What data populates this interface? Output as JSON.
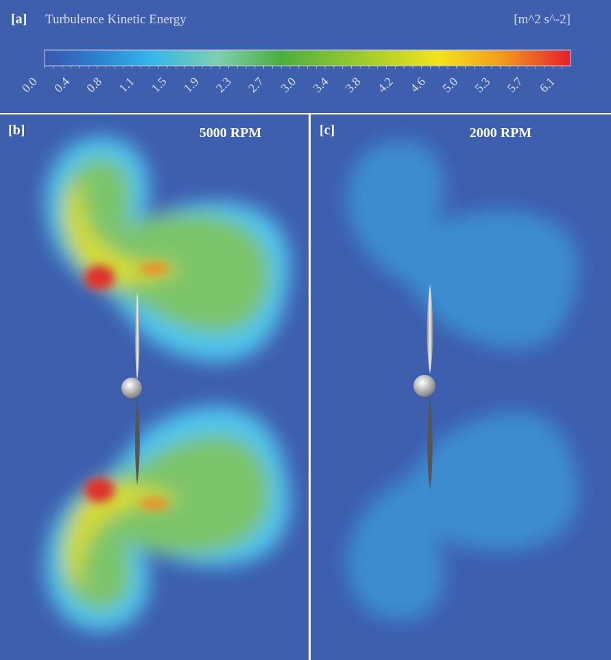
{
  "colorbar": {
    "label": "[a]",
    "title": "Turbulence Kinetic Energy",
    "unit": "[m^2 s^-2]",
    "ticks": [
      "0.0",
      "0.4",
      "0.8",
      "1.1",
      "1.5",
      "1.9",
      "2.3",
      "2.7",
      "3.0",
      "3.4",
      "3.8",
      "4.2",
      "4.6",
      "5.0",
      "5.3",
      "5.7",
      "6.1"
    ]
  },
  "panels": [
    {
      "label": "[b]",
      "title": "5000 RPM"
    },
    {
      "label": "[c]",
      "title": "2000 RPM"
    }
  ]
}
